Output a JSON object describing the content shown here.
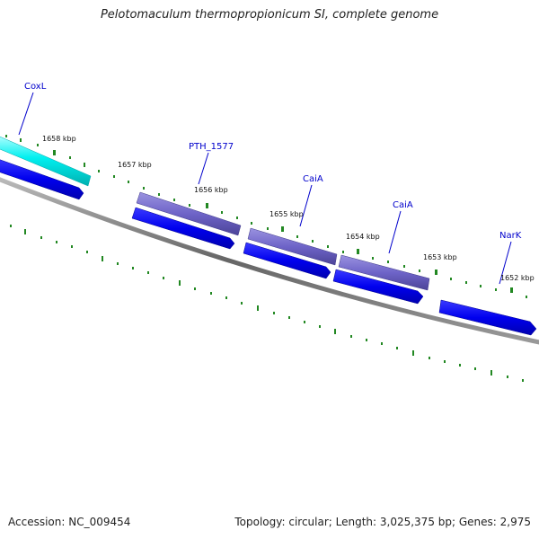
{
  "title": "Pelotomaculum thermopropionicum SI, complete genome",
  "footer": {
    "accession": "Accession: NC_009454",
    "summary": "Topology: circular; Length: 3,025,375 bp; Genes: 2,975"
  },
  "tick_labels": [
    "1658 kbp",
    "1657 kbp",
    "1656 kbp",
    "1655 kbp",
    "1654 kbp",
    "1653 kbp",
    "1652 kbp"
  ],
  "gene_labels": [
    "CoxL",
    "PTH_1577",
    "CaiA",
    "CaiA",
    "NarK"
  ],
  "colors": {
    "cds_dark_blue": "#0000ee",
    "cds_cyan": "#00e5e5",
    "cds_slate": "#6a60c0",
    "backbone": "#777777",
    "ticks": "#228822",
    "labels": "#0000cc"
  }
}
